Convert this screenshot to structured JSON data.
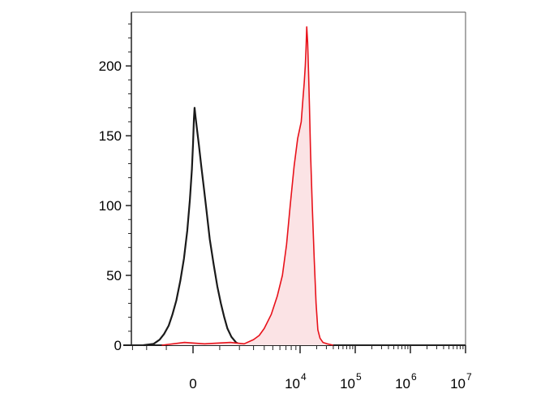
{
  "chart_data": {
    "type": "area",
    "title": "",
    "xlabel": "",
    "ylabel": "",
    "x_scale": "biexponential",
    "ylim": [
      0,
      235
    ],
    "grid": false,
    "legend": "none",
    "y_ticks": [
      {
        "value": 0,
        "label": "0"
      },
      {
        "value": 50,
        "label": "50"
      },
      {
        "value": 100,
        "label": "100"
      },
      {
        "value": 150,
        "label": "150"
      },
      {
        "value": 200,
        "label": "200"
      }
    ],
    "x_ticks": [
      {
        "value": 0,
        "base": "0",
        "exp": ""
      },
      {
        "value": 10000,
        "base": "10",
        "exp": "4"
      },
      {
        "value": 100000,
        "base": "10",
        "exp": "5"
      },
      {
        "value": 1000000,
        "base": "10",
        "exp": "6"
      },
      {
        "value": 10000000,
        "base": "10",
        "exp": "7"
      }
    ],
    "series": [
      {
        "color": "#1a1a1a",
        "fill": "none",
        "points": [
          [
            -2200,
            0
          ],
          [
            -1600,
            1
          ],
          [
            -1300,
            4
          ],
          [
            -1100,
            8
          ],
          [
            -900,
            14
          ],
          [
            -750,
            22
          ],
          [
            -600,
            32
          ],
          [
            -450,
            46
          ],
          [
            -320,
            62
          ],
          [
            -200,
            82
          ],
          [
            -110,
            104
          ],
          [
            -40,
            126
          ],
          [
            0,
            144
          ],
          [
            30,
            162
          ],
          [
            55,
            170
          ],
          [
            85,
            164
          ],
          [
            130,
            156
          ],
          [
            200,
            144
          ],
          [
            290,
            128
          ],
          [
            380,
            113
          ],
          [
            480,
            96
          ],
          [
            600,
            76
          ],
          [
            750,
            58
          ],
          [
            900,
            42
          ],
          [
            1050,
            30
          ],
          [
            1200,
            20
          ],
          [
            1350,
            12
          ],
          [
            1550,
            6
          ],
          [
            1800,
            2
          ],
          [
            2100,
            0
          ]
        ]
      },
      {
        "color": "#e8111a",
        "fill": "#fbe3e5",
        "points": [
          [
            -1200,
            0
          ],
          [
            -300,
            2
          ],
          [
            400,
            1
          ],
          [
            1500,
            2
          ],
          [
            2300,
            1
          ],
          [
            3000,
            4
          ],
          [
            3500,
            7
          ],
          [
            4000,
            12
          ],
          [
            4800,
            22
          ],
          [
            5600,
            35
          ],
          [
            6400,
            50
          ],
          [
            7100,
            72
          ],
          [
            7800,
            100
          ],
          [
            8600,
            128
          ],
          [
            9400,
            148
          ],
          [
            10500,
            160
          ],
          [
            11300,
            177
          ],
          [
            11900,
            188
          ],
          [
            12400,
            200
          ],
          [
            12800,
            212
          ],
          [
            13200,
            228
          ],
          [
            13700,
            217
          ],
          [
            14200,
            196
          ],
          [
            14800,
            170
          ],
          [
            15500,
            138
          ],
          [
            16600,
            100
          ],
          [
            18000,
            62
          ],
          [
            19500,
            30
          ],
          [
            21000,
            11
          ],
          [
            23000,
            5
          ],
          [
            26000,
            2
          ],
          [
            31000,
            1
          ],
          [
            40000,
            0
          ]
        ]
      }
    ]
  }
}
